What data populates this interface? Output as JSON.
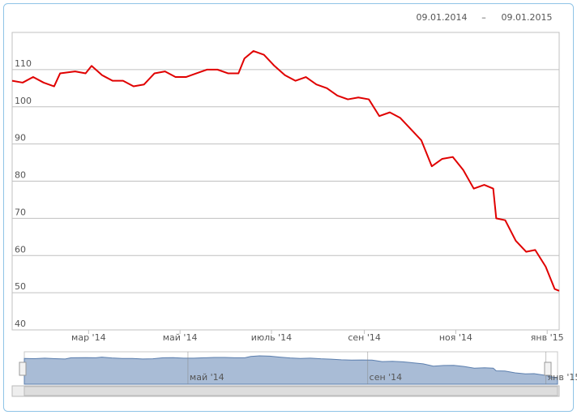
{
  "chart_data": {
    "type": "line",
    "range_from": "09.01.2014",
    "range_separator": "–",
    "range_to": "09.01.2015",
    "x": [
      "2014-01-09",
      "2014-01-16",
      "2014-01-23",
      "2014-01-30",
      "2014-02-06",
      "2014-02-10",
      "2014-02-20",
      "2014-02-27",
      "2014-03-03",
      "2014-03-10",
      "2014-03-17",
      "2014-03-24",
      "2014-03-31",
      "2014-04-07",
      "2014-04-14",
      "2014-04-21",
      "2014-04-28",
      "2014-05-05",
      "2014-05-12",
      "2014-05-19",
      "2014-05-26",
      "2014-06-02",
      "2014-06-09",
      "2014-06-13",
      "2014-06-19",
      "2014-06-26",
      "2014-07-03",
      "2014-07-10",
      "2014-07-17",
      "2014-07-24",
      "2014-07-31",
      "2014-08-07",
      "2014-08-14",
      "2014-08-21",
      "2014-08-28",
      "2014-09-04",
      "2014-09-11",
      "2014-09-18",
      "2014-09-25",
      "2014-10-02",
      "2014-10-09",
      "2014-10-16",
      "2014-10-23",
      "2014-10-30",
      "2014-11-06",
      "2014-11-13",
      "2014-11-20",
      "2014-11-26",
      "2014-11-28",
      "2014-12-04",
      "2014-12-11",
      "2014-12-18",
      "2014-12-24",
      "2014-12-31",
      "2015-01-06",
      "2015-01-09"
    ],
    "series": [
      {
        "color": "#e00000",
        "values": [
          107,
          106.5,
          108,
          106.5,
          105.5,
          109,
          109.5,
          109,
          111,
          108.5,
          107,
          107,
          105.5,
          106,
          109,
          109.5,
          108,
          108,
          109,
          110,
          110,
          109,
          109,
          113,
          115,
          114,
          111,
          108.5,
          107,
          108,
          106,
          105,
          103,
          102,
          102.5,
          102,
          97.5,
          98.5,
          97,
          94,
          91,
          84,
          86,
          86.5,
          83,
          78,
          79,
          78,
          70,
          69.5,
          64,
          61,
          61.5,
          57,
          51,
          50.5
        ]
      }
    ],
    "xlim": [
      "2014-01-09",
      "2015-01-09"
    ],
    "xticks": [
      {
        "value": "2014-03-01",
        "label": "мар '14"
      },
      {
        "value": "2014-05-01",
        "label": "май '14"
      },
      {
        "value": "2014-07-01",
        "label": "июль '14"
      },
      {
        "value": "2014-09-01",
        "label": "сен '14"
      },
      {
        "value": "2014-11-01",
        "label": "ноя '14"
      },
      {
        "value": "2015-01-01",
        "label": "янв '15"
      }
    ],
    "ylim": [
      40,
      120
    ],
    "yticks": [
      40,
      50,
      60,
      70,
      80,
      90,
      100,
      110
    ],
    "grid": true,
    "navigator": {
      "ylim": [
        30,
        127
      ],
      "color": "#a9bcd6",
      "line_color": "#5c7fae",
      "xticks": [
        {
          "value": "2014-05-01",
          "label": "май '14"
        },
        {
          "value": "2014-09-01",
          "label": "сен '14"
        },
        {
          "value": "2015-01-01",
          "label": "янв '15"
        }
      ]
    }
  }
}
